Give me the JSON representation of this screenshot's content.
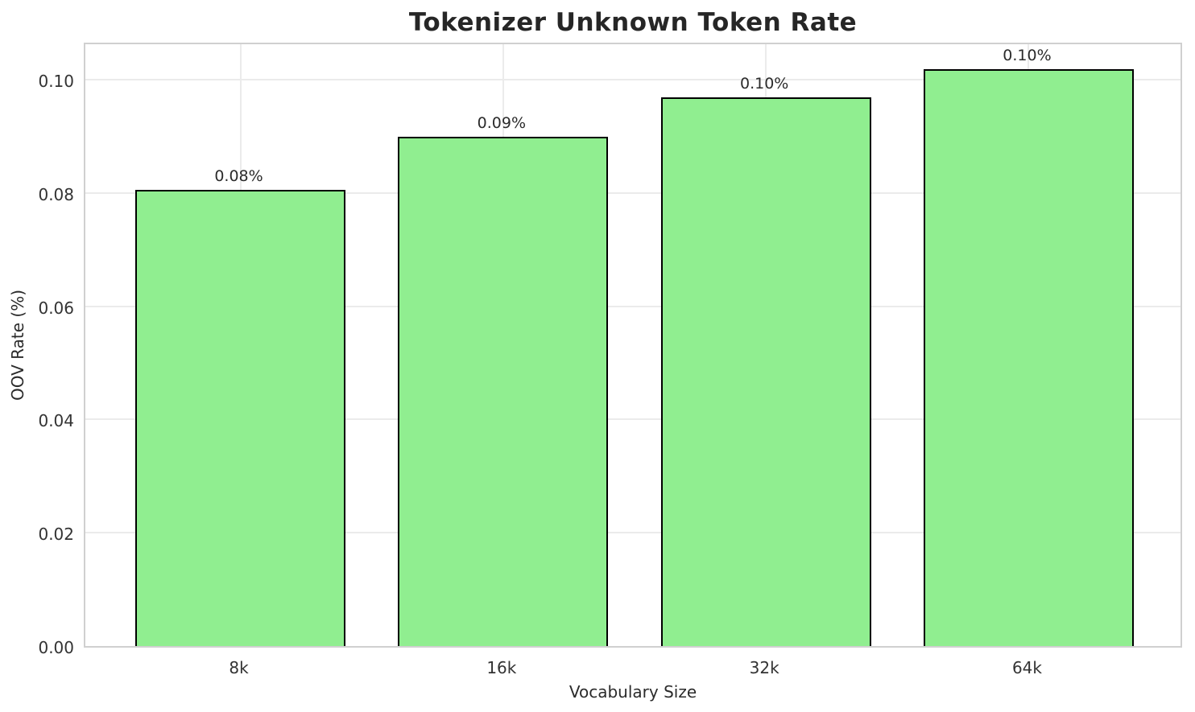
{
  "chart_data": {
    "type": "bar",
    "title": "Tokenizer Unknown Token Rate",
    "xlabel": "Vocabulary Size",
    "ylabel": "OOV Rate (%)",
    "categories": [
      "8k",
      "16k",
      "32k",
      "64k"
    ],
    "values": [
      0.0805,
      0.0899,
      0.0969,
      0.1018
    ],
    "bar_value_labels": [
      "0.08%",
      "0.09%",
      "0.10%",
      "0.10%"
    ],
    "y_ticks": [
      {
        "value": 0.0,
        "label": "0.00"
      },
      {
        "value": 0.02,
        "label": "0.02"
      },
      {
        "value": 0.04,
        "label": "0.04"
      },
      {
        "value": 0.06,
        "label": "0.06"
      },
      {
        "value": 0.08,
        "label": "0.08"
      },
      {
        "value": 0.1,
        "label": "0.10"
      }
    ],
    "ylim": [
      0,
      0.1068
    ],
    "grid": true,
    "legend_position": "none",
    "colors": {
      "bar_fill": "#90ee90",
      "bar_edge": "#000000",
      "grid": "#ebebeb",
      "spine": "#d0d0d0",
      "text": "#2b2b2b",
      "background": "#ffffff"
    }
  }
}
